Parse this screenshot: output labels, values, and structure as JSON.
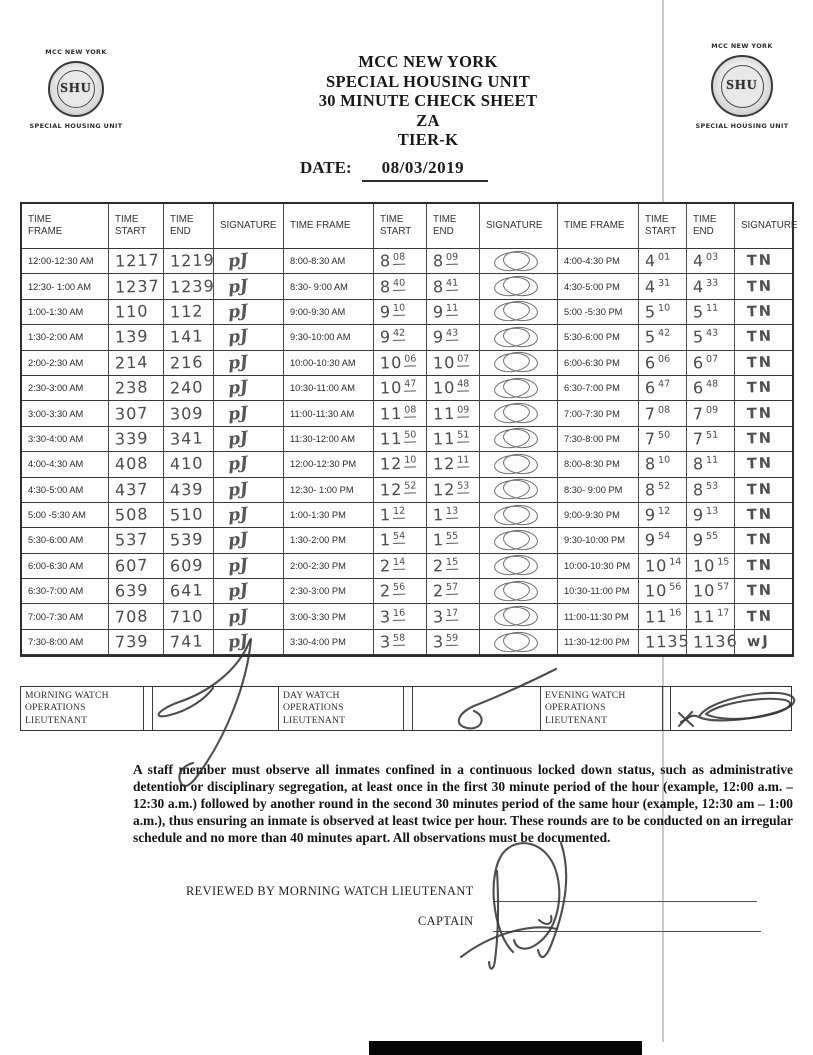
{
  "header": {
    "title_lines": [
      "MCC NEW YORK",
      "SPECIAL HOUSING UNIT",
      "30 MINUTE CHECK SHEET",
      "ZA",
      "TIER-K"
    ],
    "date_label": "DATE:",
    "date_value": "08/03/2019"
  },
  "logo": {
    "top": "MCC NEW YORK",
    "seal": "SHU",
    "bottom": "SPECIAL HOUSING UNIT"
  },
  "table": {
    "column_headers": [
      "TIME FRAME",
      "TIME START",
      "TIME END",
      "SIGNATURE",
      "TIME FRAME",
      "TIME START",
      "TIME END",
      "SIGNATURE",
      "TIME FRAME",
      "TIME START",
      "TIME END",
      "SIGNATURE"
    ],
    "groups": [
      {
        "sig_style": "text",
        "sup": false,
        "underline": false,
        "rows": [
          [
            "12:00-12:30 AM",
            "1217",
            "1219",
            "pJ"
          ],
          [
            "12:30- 1:00 AM",
            "1237",
            "1239",
            "pJ"
          ],
          [
            "1:00-1:30 AM",
            "110",
            "112",
            "pJ"
          ],
          [
            "1:30-2:00 AM",
            "139",
            "141",
            "pJ"
          ],
          [
            "2:00-2:30 AM",
            "214",
            "216",
            "pJ"
          ],
          [
            "2:30-3:00 AM",
            "238",
            "240",
            "pJ"
          ],
          [
            "3:00-3:30 AM",
            "307",
            "309",
            "pJ"
          ],
          [
            "3:30-4:00 AM",
            "339",
            "341",
            "pJ"
          ],
          [
            "4:00-4:30 AM",
            "408",
            "410",
            "pJ"
          ],
          [
            "4:30-5:00 AM",
            "437",
            "439",
            "pJ"
          ],
          [
            "5:00 -5:30 AM",
            "508",
            "510",
            "pJ"
          ],
          [
            "5:30-6:00 AM",
            "537",
            "539",
            "pJ"
          ],
          [
            "6:00-6:30 AM",
            "607",
            "609",
            "pJ"
          ],
          [
            "6:30-7:00 AM",
            "639",
            "641",
            "pJ"
          ],
          [
            "7:00-7:30 AM",
            "708",
            "710",
            "pJ"
          ],
          [
            "7:30-8:00 AM",
            "739",
            "741",
            "pJ"
          ]
        ]
      },
      {
        "sig_style": "scribble",
        "sup": true,
        "underline": true,
        "rows": [
          [
            "8:00-8:30 AM",
            "8|08",
            "8|09",
            ""
          ],
          [
            "8:30- 9:00 AM",
            "8|40",
            "8|41",
            ""
          ],
          [
            "9:00-9:30 AM",
            "9|10",
            "9|11",
            ""
          ],
          [
            "9:30-10:00 AM",
            "9|42",
            "9|43",
            ""
          ],
          [
            "10:00-10:30 AM",
            "10|06",
            "10|07",
            ""
          ],
          [
            "10:30-11:00 AM",
            "10|47",
            "10|48",
            ""
          ],
          [
            "11:00-11:30 AM",
            "11|08",
            "11|09",
            ""
          ],
          [
            "11:30-12:00 AM",
            "11|50",
            "11|51",
            ""
          ],
          [
            "12:00-12:30 PM",
            "12|10",
            "12|11",
            ""
          ],
          [
            "12:30- 1:00 PM",
            "12|52",
            "12|53",
            ""
          ],
          [
            "1:00-1:30 PM",
            "1|12",
            "1|13",
            ""
          ],
          [
            "1:30-2:00 PM",
            "1|54",
            "1|55",
            ""
          ],
          [
            "2:00-2:30 PM",
            "2|14",
            "2|15",
            ""
          ],
          [
            "2:30-3:00 PM",
            "2|56",
            "2|57",
            ""
          ],
          [
            "3:00-3:30 PM",
            "3|16",
            "3|17",
            ""
          ],
          [
            "3:30-4:00 PM",
            "3|58",
            "3|59",
            ""
          ]
        ]
      },
      {
        "sig_style": "text",
        "sup": true,
        "underline": false,
        "rows": [
          [
            "4:00-4:30 PM",
            "4|01",
            "4|03",
            "TN"
          ],
          [
            "4:30-5:00 PM",
            "4|31",
            "4|33",
            "TN"
          ],
          [
            "5:00 -5:30 PM",
            "5|10",
            "5|11",
            "TN"
          ],
          [
            "5:30-6:00 PM",
            "5|42",
            "5|43",
            "TN"
          ],
          [
            "6:00-6:30 PM",
            "6|06",
            "6|07",
            "TN"
          ],
          [
            "6:30-7:00 PM",
            "6|47",
            "6|48",
            "TN"
          ],
          [
            "7:00-7:30 PM",
            "7|08",
            "7|09",
            "TN"
          ],
          [
            "7:30-8:00 PM",
            "7|50",
            "7|51",
            "TN"
          ],
          [
            "8:00-8:30 PM",
            "8|10",
            "8|11",
            "TN"
          ],
          [
            "8:30- 9:00 PM",
            "8|52",
            "8|53",
            "TN"
          ],
          [
            "9:00-9:30 PM",
            "9|12",
            "9|13",
            "TN"
          ],
          [
            "9:30-10:00 PM",
            "9|54",
            "9|55",
            "TN"
          ],
          [
            "10:00-10:30 PM",
            "10|14",
            "10|15",
            "TN"
          ],
          [
            "10:30-11:00 PM",
            "10|56",
            "10|57",
            "TN"
          ],
          [
            "11:00-11:30 PM",
            "11|16",
            "11|17",
            "TN"
          ],
          [
            "11:30-12:00 PM",
            "1135",
            "1136",
            "wJ"
          ]
        ]
      }
    ]
  },
  "watch_row": {
    "boxes": [
      "MORNING WATCH OPERATIONS LIEUTENANT",
      "DAY WATCH OPERATIONS LIEUTENANT",
      "EVENING WATCH OPERATIONS LIEUTENANT"
    ]
  },
  "notice": "A staff member must observe all inmates confined in a continuous locked down status, such as administrative detention or disciplinary segregation, at least once in the first 30 minute period of the hour (example, 12:00 a.m. – 12:30 a.m.) followed by another round in the second 30 minutes period of the same hour (example, 12:30 am – 1:00 a.m.), thus ensuring an inmate is observed at least twice per hour. These rounds are to be conducted on an irregular schedule and no more than 40 minutes apart. All observations must be documented.",
  "review": {
    "reviewed_label": "REVIEWED BY MORNING WATCH LIEUTENANT",
    "captain_label": "CAPTAIN"
  },
  "ink_color": "#363636"
}
